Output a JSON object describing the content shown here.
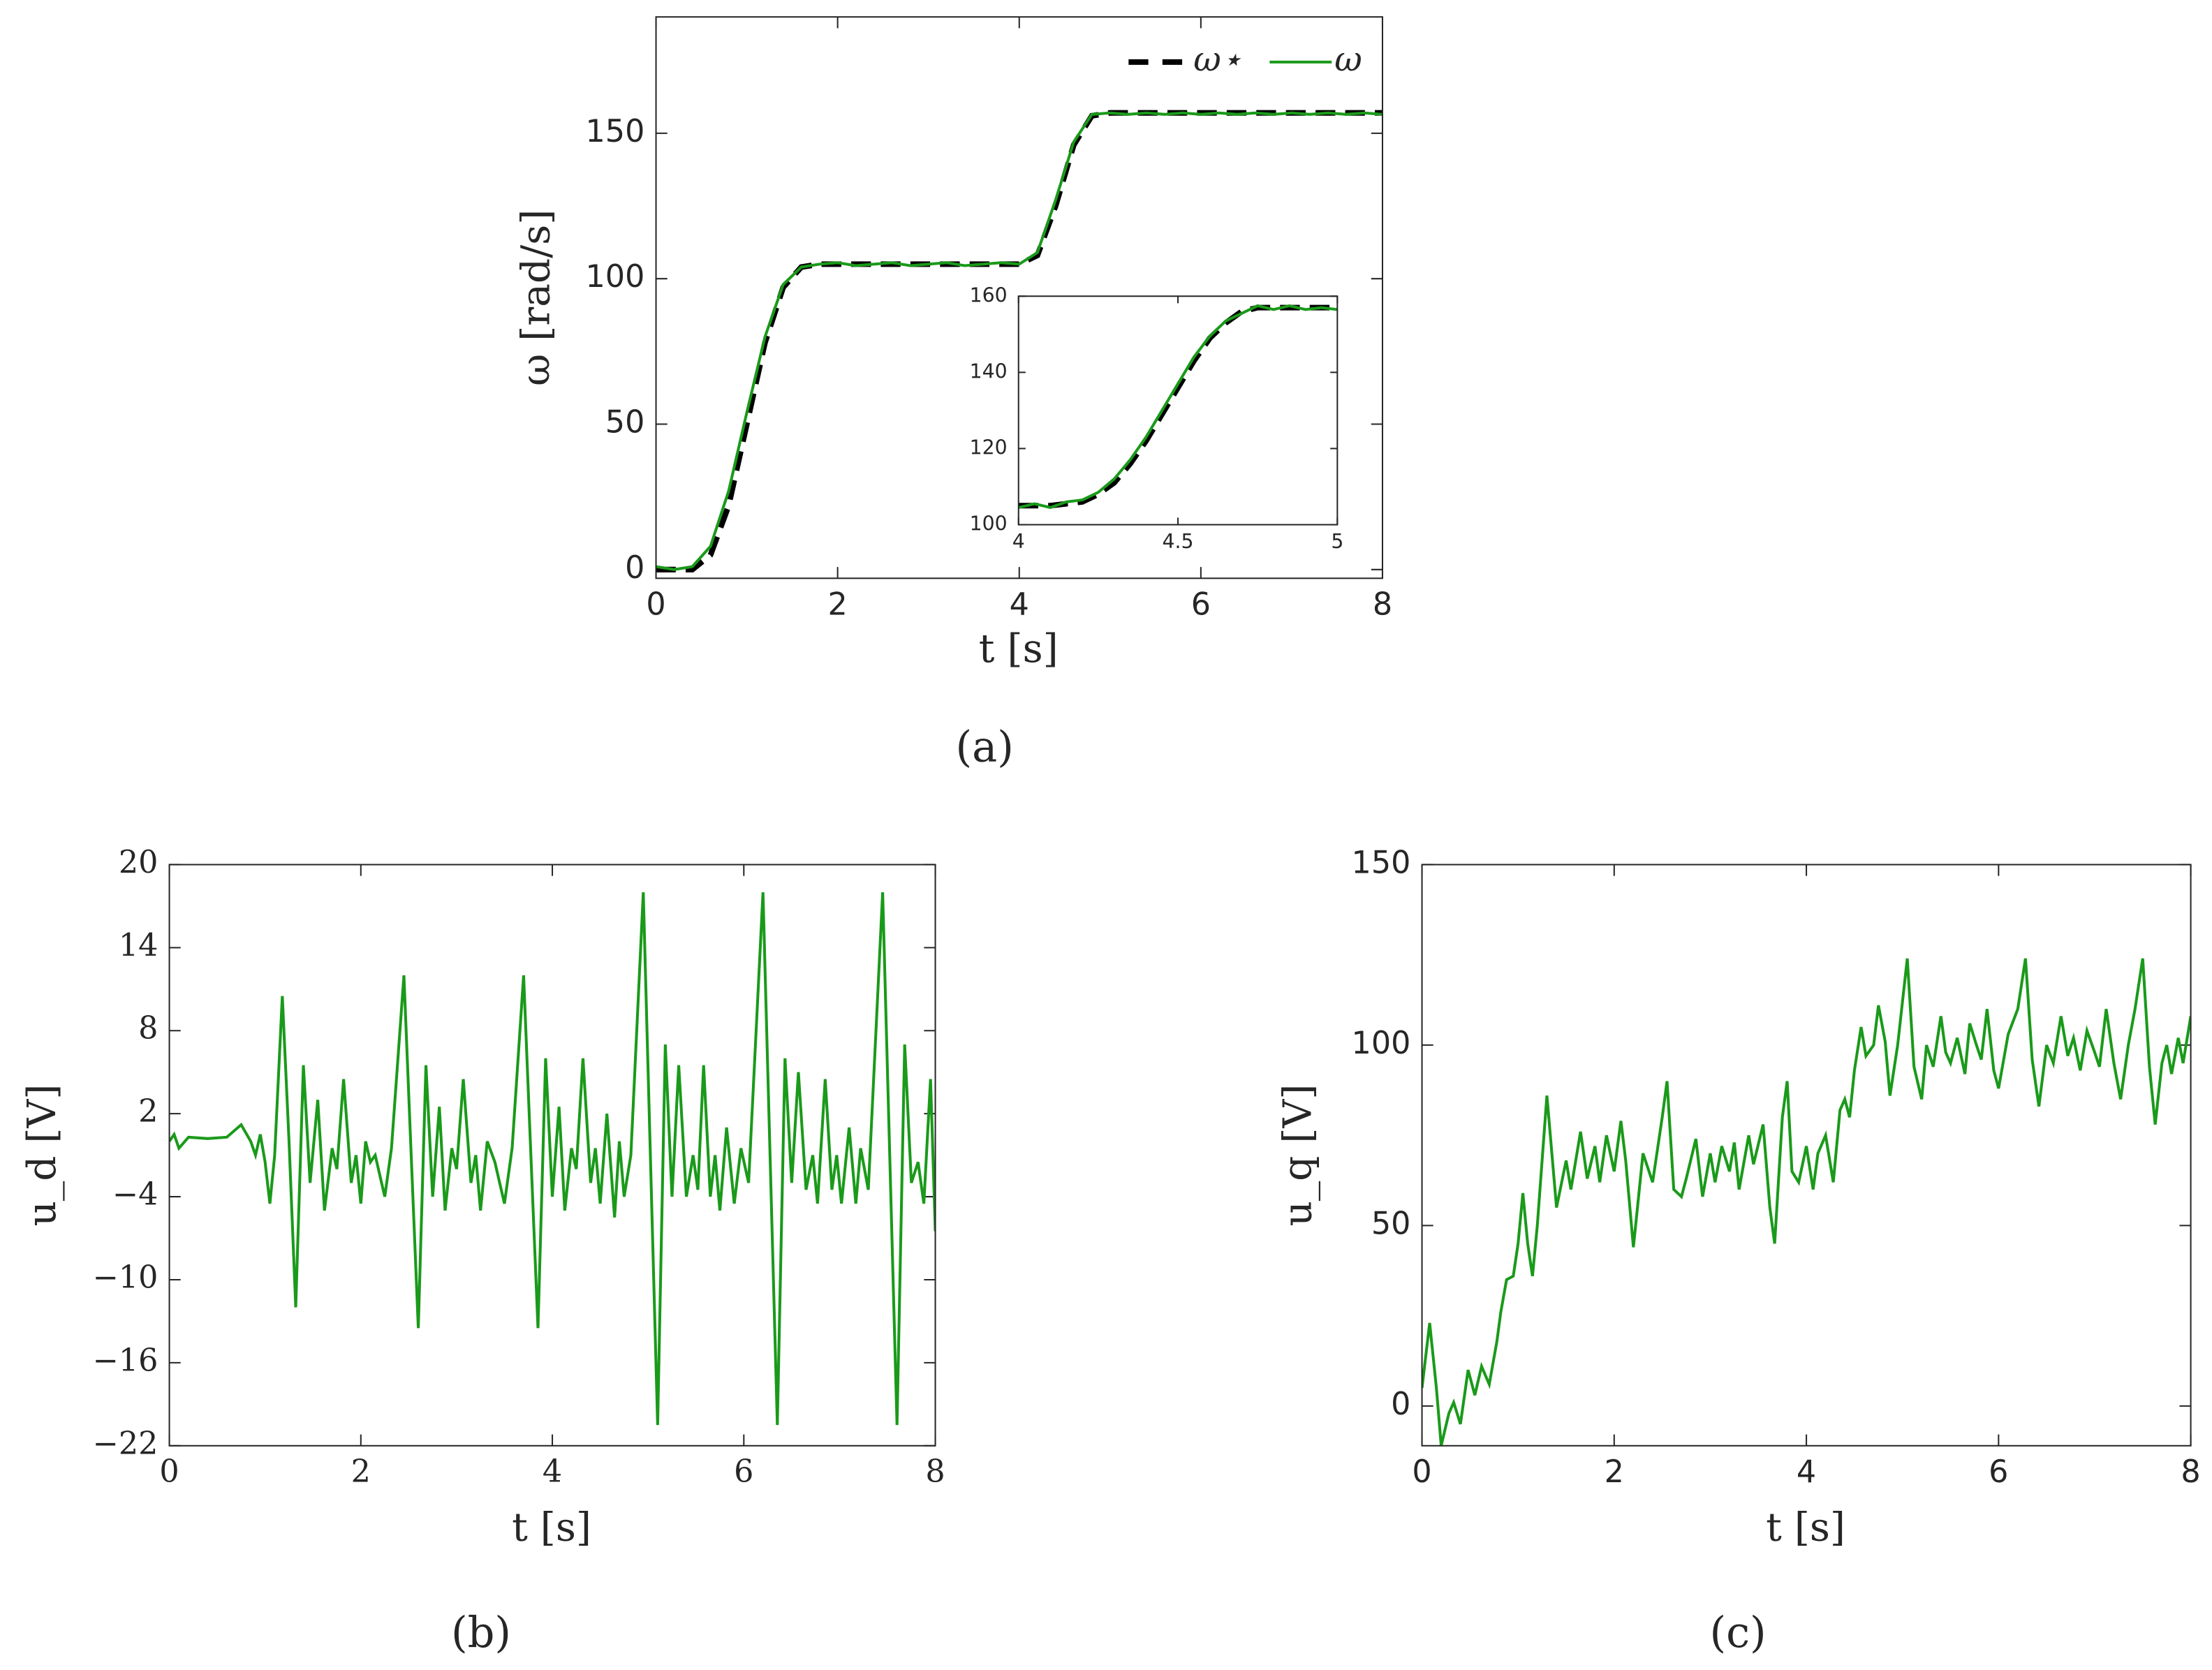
{
  "chart_data": [
    {
      "type": "line",
      "caption": "(a)",
      "x_label": "t [s]",
      "y_label": "ω [rad/s]",
      "x": [
        0,
        0.2,
        0.4,
        0.6,
        0.8,
        1.0,
        1.2,
        1.4,
        1.6,
        1.8,
        2.0,
        2.2,
        2.4,
        2.6,
        2.8,
        3.0,
        3.2,
        3.4,
        3.6,
        3.8,
        4.0,
        4.2,
        4.4,
        4.6,
        4.8,
        5.0,
        5.2,
        5.4,
        5.6,
        5.8,
        6.0,
        6.2,
        6.4,
        6.6,
        6.8,
        7.0,
        7.2,
        7.4,
        7.6,
        7.8,
        8.0
      ],
      "series": [
        {
          "name": "ω⋆",
          "color": "#000000",
          "linestyle": "dashed",
          "values": [
            0,
            0,
            0,
            5,
            22,
            50,
            78,
            97,
            104,
            105,
            105,
            105,
            105,
            105,
            105,
            105,
            105,
            105,
            105,
            105,
            105,
            108,
            125,
            146,
            156,
            157,
            157,
            157,
            157,
            157,
            157,
            157,
            157,
            157,
            157,
            157,
            157,
            157,
            157,
            157,
            157
          ]
        },
        {
          "name": "ω",
          "color": "#1a9a1a",
          "linestyle": "solid",
          "values": [
            1,
            0,
            1,
            8,
            27,
            54,
            80,
            98,
            104,
            105,
            105.5,
            104.5,
            105,
            105.5,
            104.5,
            105,
            105.5,
            104.5,
            105,
            105.5,
            105,
            109,
            127,
            147,
            156.5,
            157,
            156.5,
            157,
            156.5,
            157,
            156.5,
            157,
            156.5,
            157,
            156.5,
            157,
            156.5,
            157,
            156.5,
            157,
            156.5
          ]
        }
      ],
      "xlim": [
        0,
        8
      ],
      "xticks": [
        0,
        2,
        4,
        6,
        8
      ],
      "ylim": [
        -3,
        190
      ],
      "yticks": [
        0,
        50,
        100,
        150
      ],
      "legend": "upper right"
    },
    {
      "type": "line",
      "x": [
        4.0,
        4.05,
        4.1,
        4.15,
        4.2,
        4.25,
        4.3,
        4.35,
        4.4,
        4.45,
        4.5,
        4.55,
        4.6,
        4.65,
        4.7,
        4.75,
        4.8,
        4.85,
        4.9,
        4.95,
        5.0
      ],
      "series": [
        {
          "color": "#000000",
          "linestyle": "dashed",
          "values": [
            105,
            105,
            105,
            105.5,
            106,
            108,
            111,
            116,
            122,
            129,
            136,
            143,
            149,
            153,
            156,
            157,
            157,
            157,
            157,
            157,
            157
          ]
        },
        {
          "color": "#1a9a1a",
          "linestyle": "solid",
          "values": [
            104.5,
            105.5,
            104.5,
            106,
            106.5,
            108.5,
            112,
            117,
            123,
            130,
            137,
            144,
            149.5,
            153.5,
            155.5,
            157.5,
            156.5,
            157.5,
            156.5,
            157,
            156.5
          ]
        }
      ],
      "xlim": [
        4,
        5
      ],
      "xticks": [
        4,
        4.5,
        5
      ],
      "ylim": [
        100,
        160
      ],
      "yticks": [
        100,
        120,
        140,
        160
      ]
    },
    {
      "type": "line",
      "caption": "(b)",
      "x_label": "t [s]",
      "y_label": "u_d [V]",
      "x": [
        0,
        0.05,
        0.1,
        0.2,
        0.4,
        0.6,
        0.75,
        0.85,
        0.9,
        0.95,
        1.0,
        1.05,
        1.1,
        1.18,
        1.25,
        1.32,
        1.4,
        1.47,
        1.55,
        1.62,
        1.7,
        1.75,
        1.82,
        1.9,
        1.95,
        2.0,
        2.05,
        2.1,
        2.15,
        2.25,
        2.32,
        2.45,
        2.52,
        2.6,
        2.68,
        2.75,
        2.82,
        2.88,
        2.95,
        3.0,
        3.07,
        3.15,
        3.2,
        3.25,
        3.32,
        3.4,
        3.5,
        3.58,
        3.7,
        3.77,
        3.85,
        3.93,
        4.0,
        4.07,
        4.13,
        4.2,
        4.25,
        4.32,
        4.4,
        4.45,
        4.5,
        4.57,
        4.65,
        4.7,
        4.75,
        4.82,
        4.95,
        5.02,
        5.1,
        5.18,
        5.25,
        5.32,
        5.4,
        5.47,
        5.52,
        5.58,
        5.65,
        5.7,
        5.75,
        5.82,
        5.9,
        5.97,
        6.05,
        6.2,
        6.27,
        6.35,
        6.43,
        6.5,
        6.57,
        6.65,
        6.72,
        6.77,
        6.85,
        6.92,
        6.97,
        7.02,
        7.1,
        7.17,
        7.22,
        7.3,
        7.45,
        7.52,
        7.6,
        7.68,
        7.75,
        7.82,
        7.88,
        7.95,
        8.0
      ],
      "series": [
        {
          "color": "#1a9a1a",
          "linestyle": "solid",
          "values": [
            0,
            0.5,
            -0.5,
            0.3,
            0.2,
            0.3,
            1.2,
            0,
            -1,
            0.5,
            -1.5,
            -4.5,
            -1,
            10.5,
            0,
            -12,
            5.5,
            -3,
            3,
            -5,
            -0.5,
            -2,
            4.5,
            -3,
            -1,
            -4.5,
            0,
            -1.5,
            -1,
            -4,
            -0.5,
            12,
            0,
            -13.5,
            5.5,
            -4,
            2.5,
            -5,
            -0.5,
            -2,
            4.5,
            -3,
            -1,
            -5,
            0,
            -1.5,
            -4.5,
            -0.5,
            12,
            0,
            -13.5,
            6,
            -4,
            2.5,
            -5,
            -0.5,
            -2,
            6,
            -3,
            -0.5,
            -4.5,
            2,
            -5.5,
            0,
            -4,
            -1,
            18,
            0,
            -20.5,
            7,
            -4,
            5.5,
            -4,
            -1,
            -3.5,
            5.5,
            -4,
            -1,
            -5,
            1,
            -4.5,
            -0.5,
            -3,
            18,
            0,
            -20.5,
            6,
            -3,
            5,
            -3.5,
            -1,
            -4.5,
            4.5,
            -3.5,
            -1,
            -4.5,
            1,
            -4.5,
            -0.5,
            -3.5,
            18,
            0,
            -20.5,
            7,
            -3,
            -1.5,
            -4.5,
            4.5,
            -6.5
          ]
        }
      ],
      "xlim": [
        0,
        8
      ],
      "xticks": [
        0,
        2,
        4,
        6,
        8
      ],
      "ylim": [
        -22,
        20
      ],
      "yticks": [
        {
          "value": -22,
          "label": "−22"
        },
        {
          "value": -16,
          "label": "−16"
        },
        {
          "value": -10,
          "label": "−10"
        },
        {
          "value": -4,
          "label": "−4"
        },
        2,
        8,
        14,
        20
      ]
    },
    {
      "type": "line",
      "caption": "(c)",
      "x_label": "t [s]",
      "y_label": "u_q [V]",
      "x": [
        0,
        0.08,
        0.15,
        0.2,
        0.28,
        0.33,
        0.4,
        0.48,
        0.55,
        0.62,
        0.7,
        0.78,
        0.82,
        0.88,
        0.95,
        1.0,
        1.05,
        1.1,
        1.15,
        1.2,
        1.3,
        1.4,
        1.5,
        1.55,
        1.65,
        1.72,
        1.8,
        1.85,
        1.92,
        2.0,
        2.07,
        2.12,
        2.2,
        2.3,
        2.4,
        2.5,
        2.55,
        2.62,
        2.7,
        2.75,
        2.85,
        2.92,
        3.0,
        3.05,
        3.12,
        3.2,
        3.25,
        3.3,
        3.4,
        3.45,
        3.55,
        3.62,
        3.67,
        3.75,
        3.8,
        3.85,
        3.92,
        4.0,
        4.07,
        4.12,
        4.2,
        4.28,
        4.35,
        4.4,
        4.45,
        4.5,
        4.57,
        4.62,
        4.7,
        4.75,
        4.82,
        4.87,
        4.95,
        5.05,
        5.12,
        5.2,
        5.25,
        5.32,
        5.4,
        5.45,
        5.5,
        5.57,
        5.65,
        5.7,
        5.77,
        5.82,
        5.88,
        5.95,
        6.0,
        6.1,
        6.2,
        6.28,
        6.35,
        6.42,
        6.5,
        6.57,
        6.65,
        6.72,
        6.78,
        6.85,
        6.92,
        7.0,
        7.05,
        7.12,
        7.2,
        7.27,
        7.35,
        7.42,
        7.5,
        7.57,
        7.63,
        7.7,
        7.75,
        7.8,
        7.87,
        7.92,
        8.0
      ],
      "series": [
        {
          "color": "#1a9a1a",
          "linestyle": "solid",
          "values": [
            5,
            23,
            5,
            -11,
            -2,
            1,
            -5,
            10,
            3,
            11,
            6,
            18,
            26,
            35,
            36,
            45,
            59,
            45,
            36,
            50,
            86,
            55,
            68,
            60,
            76,
            63,
            72,
            62,
            75,
            65,
            79,
            68,
            44,
            70,
            62,
            80,
            90,
            60,
            58,
            63,
            74,
            58,
            70,
            62,
            72,
            65,
            73,
            60,
            75,
            67,
            78,
            55,
            45,
            80,
            90,
            65,
            62,
            72,
            60,
            70,
            75,
            62,
            82,
            85,
            80,
            93,
            105,
            97,
            100,
            111,
            101,
            86,
            100,
            124,
            94,
            85,
            100,
            94,
            108,
            98,
            95,
            102,
            92,
            106,
            100,
            96,
            110,
            93,
            88,
            103,
            110,
            124,
            96,
            83,
            100,
            95,
            108,
            97,
            102,
            93,
            104,
            98,
            94,
            110,
            95,
            85,
            100,
            110,
            124,
            94,
            78,
            95,
            100,
            92,
            102,
            95,
            108
          ]
        }
      ],
      "xlim": [
        0,
        8
      ],
      "xticks": [
        0,
        2,
        4,
        6,
        8
      ],
      "ylim": [
        -11,
        150
      ],
      "yticks": [
        0,
        50,
        100,
        150
      ]
    }
  ]
}
